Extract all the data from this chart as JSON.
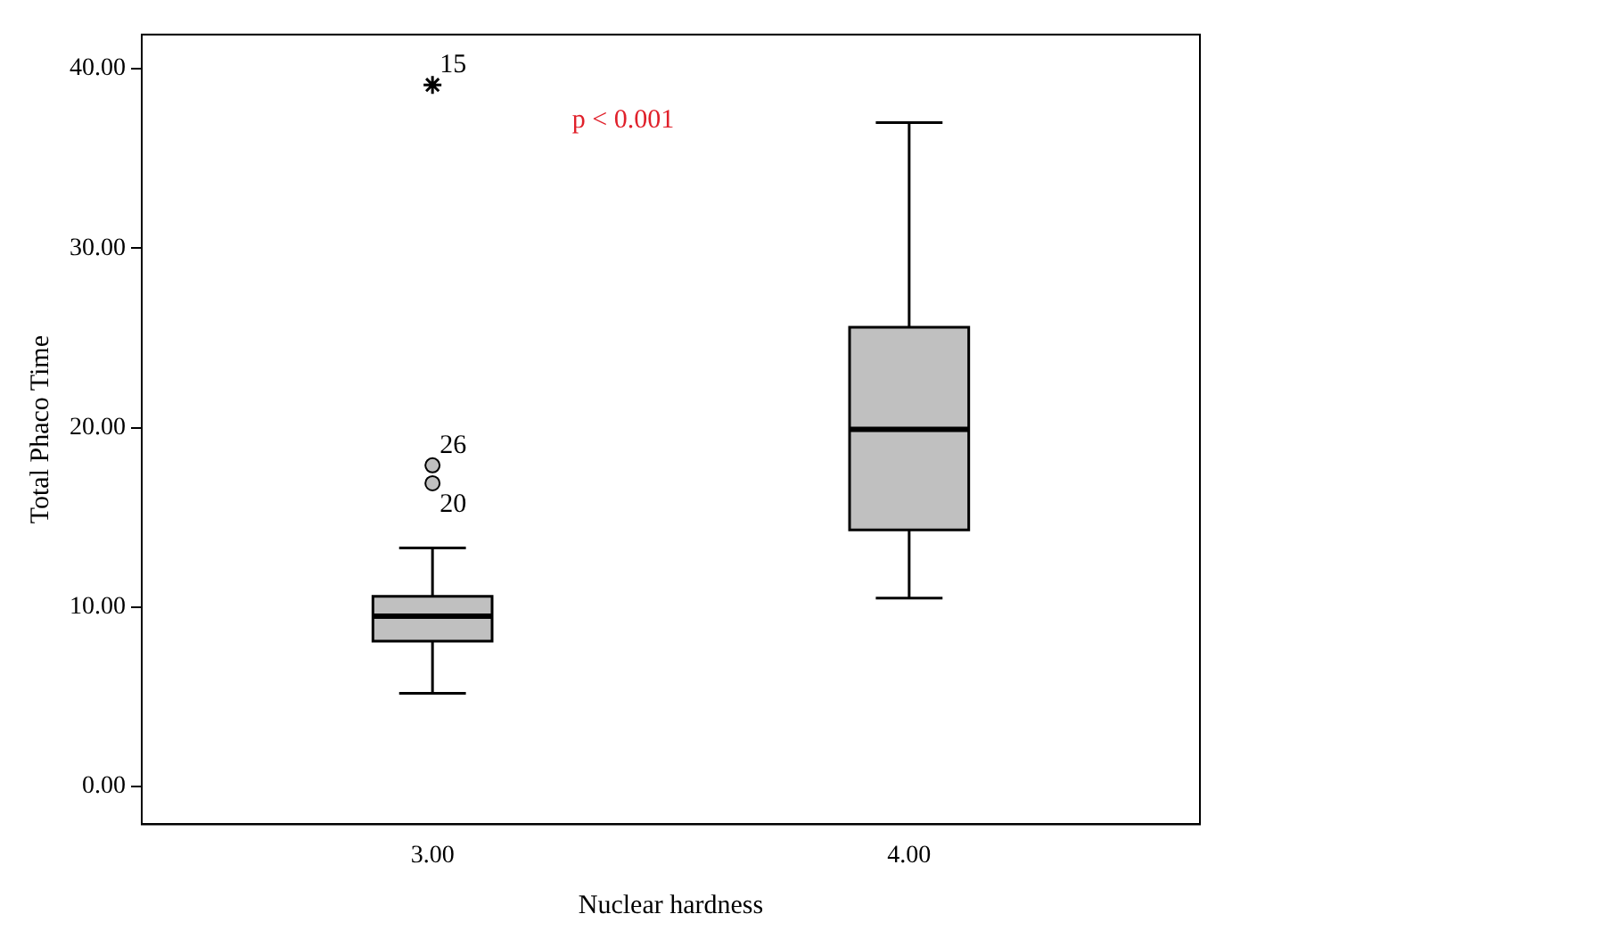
{
  "chart_data": {
    "type": "box",
    "xlabel": "Nuclear hardness",
    "ylabel": "Total Phaco Time",
    "categories": [
      "3.00",
      "4.00"
    ],
    "boxes": [
      {
        "low": 5.2,
        "q1": 8.1,
        "median": 9.5,
        "q3": 10.6,
        "high": 13.3
      },
      {
        "low": 10.5,
        "q1": 14.3,
        "median": 19.9,
        "q3": 25.6,
        "high": 37.0
      }
    ],
    "colors": [
      "#c0c0c0",
      "#c0c0c0"
    ],
    "series": [
      {
        "type": "scatter",
        "x": [
          "3.00"
        ],
        "values": [
          39.1
        ],
        "marker": "cross",
        "color": "#000000"
      },
      {
        "type": "scatter",
        "x": [
          "3.00",
          "3.00"
        ],
        "values": [
          17.9,
          16.9
        ],
        "marker": "circle",
        "color": "#c0c0c0"
      }
    ],
    "ylim": [
      -2.1,
      41.9
    ],
    "yticks": [
      {
        "value": 0,
        "label": "0.00"
      },
      {
        "value": 10,
        "label": "10.00"
      },
      {
        "value": 20,
        "label": "20.00"
      },
      {
        "value": 30,
        "label": "30.00"
      },
      {
        "value": 40,
        "label": "40.00"
      }
    ],
    "grid": false,
    "legend": false,
    "annotations": [
      "p < 0.001",
      {
        "text": "15",
        "x": "3.00",
        "y": 39.1
      },
      {
        "text": "26",
        "x": "3.00",
        "y": 17.9
      },
      {
        "text": "20",
        "x": "3.00",
        "y": 16.9
      }
    ]
  }
}
